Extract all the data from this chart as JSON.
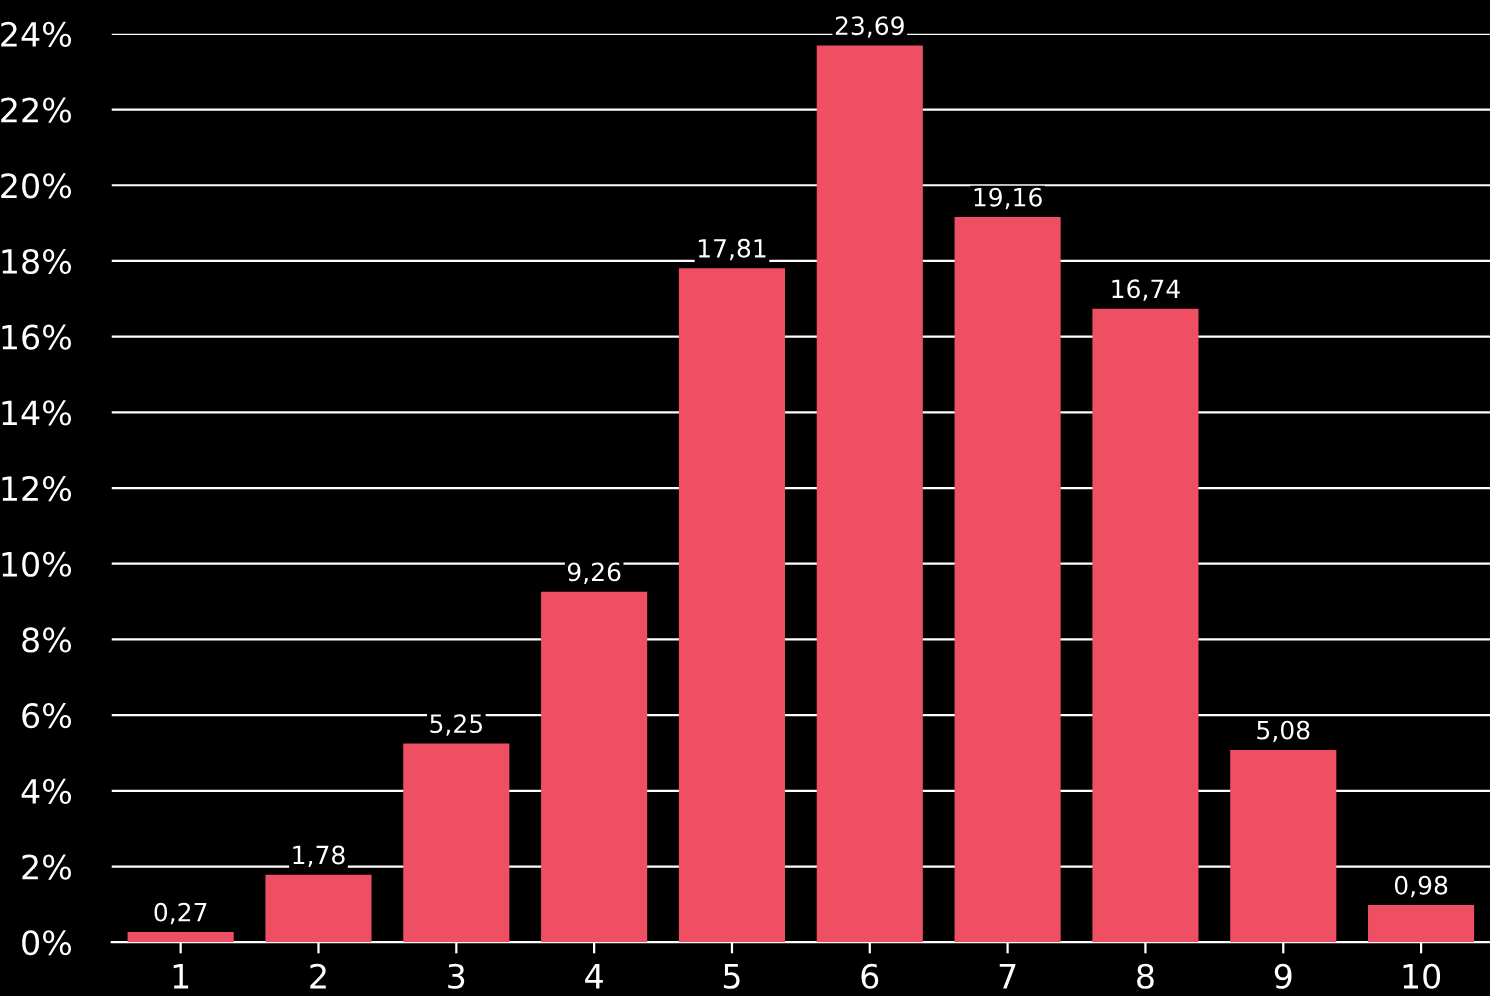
{
  "chart_data": {
    "type": "bar",
    "categories": [
      "1",
      "2",
      "3",
      "4",
      "5",
      "6",
      "7",
      "8",
      "9",
      "10"
    ],
    "values": [
      0.27,
      1.78,
      5.25,
      9.26,
      17.81,
      23.69,
      19.16,
      16.74,
      5.08,
      0.98
    ],
    "value_labels": [
      "0,27",
      "1,78",
      "5,25",
      "9,26",
      "17,81",
      "23,69",
      "19,16",
      "16,74",
      "5,08",
      "0,98"
    ],
    "color": "#ef4f62",
    "ylim": [
      0,
      24
    ],
    "yticks": [
      {
        "value": 0,
        "label": "0%"
      },
      {
        "value": 2,
        "label": "2%"
      },
      {
        "value": 4,
        "label": "4%"
      },
      {
        "value": 6,
        "label": "6%"
      },
      {
        "value": 8,
        "label": "8%"
      },
      {
        "value": 10,
        "label": "10%"
      },
      {
        "value": 12,
        "label": "12%"
      },
      {
        "value": 14,
        "label": "14%"
      },
      {
        "value": 16,
        "label": "16%"
      },
      {
        "value": 18,
        "label": "18%"
      },
      {
        "value": 20,
        "label": "20%"
      },
      {
        "value": 22,
        "label": "22%"
      },
      {
        "value": 24,
        "label": "24%"
      }
    ],
    "grid": "y"
  }
}
